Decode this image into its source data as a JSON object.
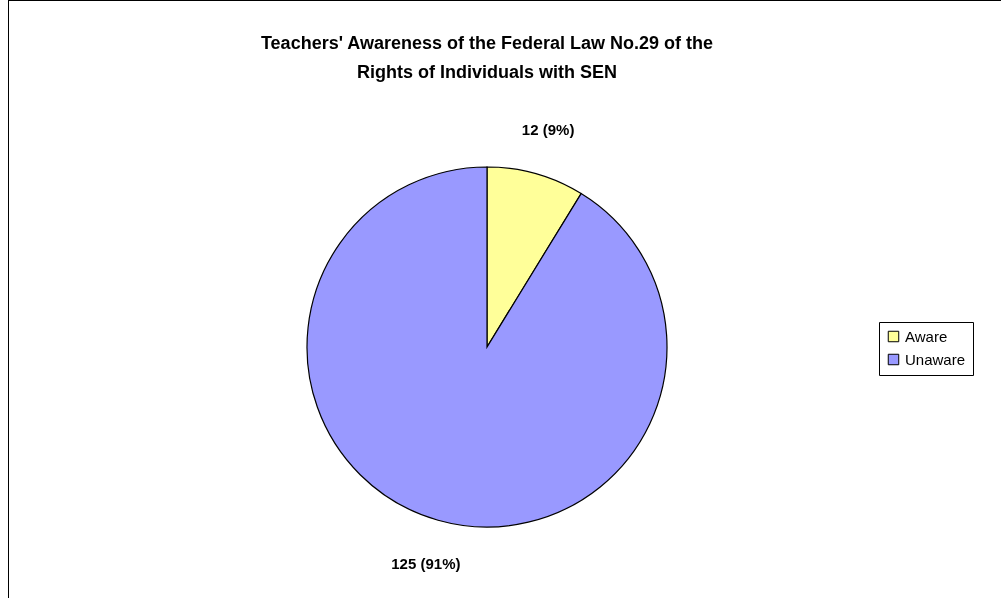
{
  "chart_data": {
    "type": "pie",
    "title": "Teachers' Awareness of the Federal Law No.29 of the Rights of Individuals with SEN",
    "categories": [
      "Aware",
      "Unaware"
    ],
    "values": [
      12,
      125
    ],
    "colors": [
      "#ffff99",
      "#9999ff"
    ],
    "value_labels": [
      "12 (9%)",
      "125 (91%)"
    ],
    "legend": "right"
  }
}
